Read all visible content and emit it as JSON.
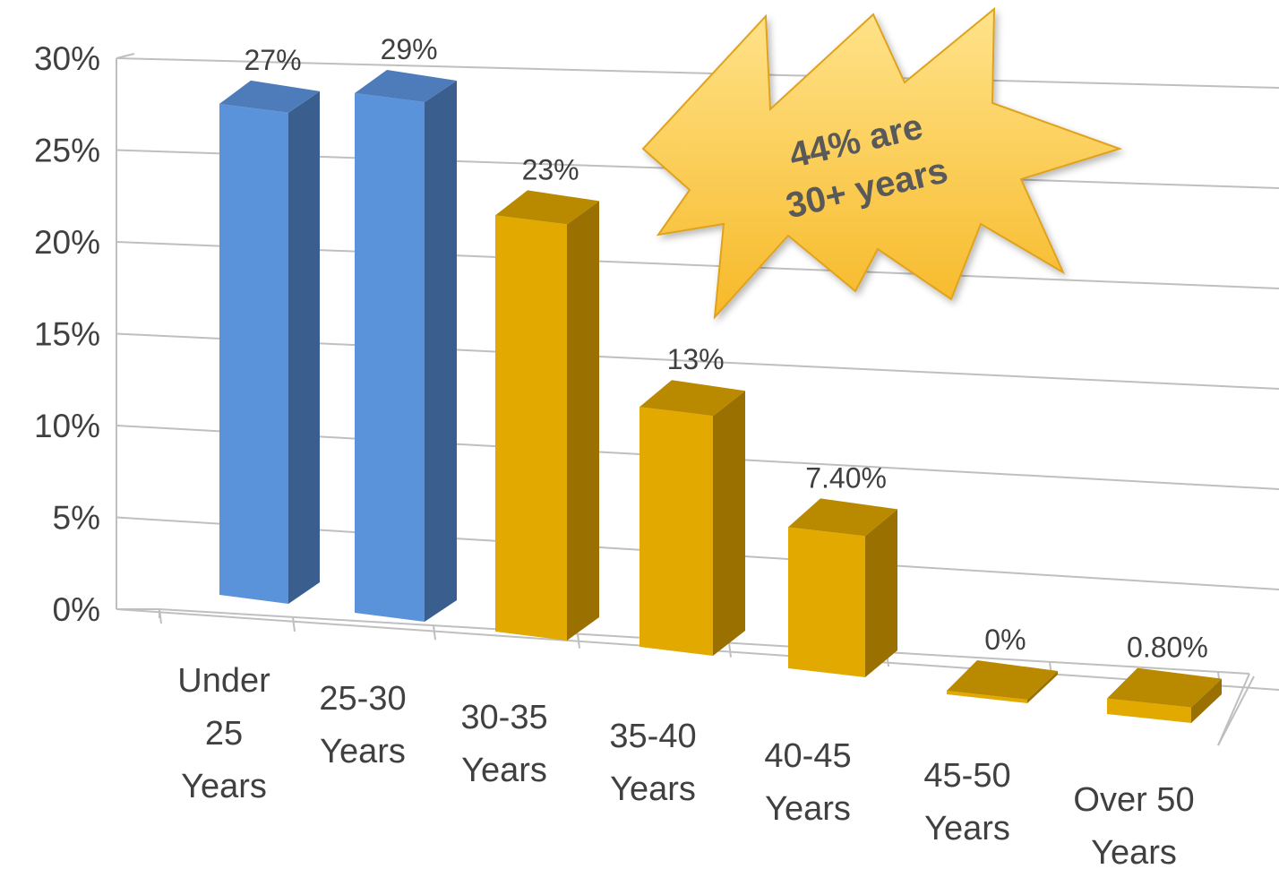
{
  "chart_data": {
    "type": "bar",
    "style": "3d-column",
    "categories": [
      [
        "Under",
        "25",
        "Years"
      ],
      [
        "25-30",
        "Years"
      ],
      [
        "30-35",
        "Years"
      ],
      [
        "35-40",
        "Years"
      ],
      [
        "40-45",
        "Years"
      ],
      [
        "45-50",
        "Years"
      ],
      [
        "Over 50",
        "Years"
      ]
    ],
    "values": [
      27,
      29,
      23,
      13,
      7.4,
      0,
      0.8
    ],
    "data_labels": [
      "27%",
      "29%",
      "23%",
      "13%",
      "7.40%",
      "0%",
      "0.80%"
    ],
    "y_ticks": [
      "0%",
      "5%",
      "10%",
      "15%",
      "20%",
      "25%",
      "30%"
    ],
    "ylim": [
      0,
      30
    ],
    "grid": true,
    "legend": "none",
    "colors": {
      "blue_front": "#5B93DA",
      "blue_side": "#3A5F8E",
      "blue_top": "#4E7CBB",
      "gold_front": "#E2A900",
      "gold_side": "#9A7000",
      "gold_top": "#B98A00",
      "grid": "#BFBFBF"
    },
    "bar_colors": [
      "blue",
      "blue",
      "gold",
      "gold",
      "gold",
      "gold",
      "gold"
    ],
    "annotation": {
      "shape": "starburst",
      "lines": [
        "44% are",
        "30+ years"
      ],
      "fill_top": "#FFE38A",
      "fill_bottom": "#F7B928"
    }
  }
}
